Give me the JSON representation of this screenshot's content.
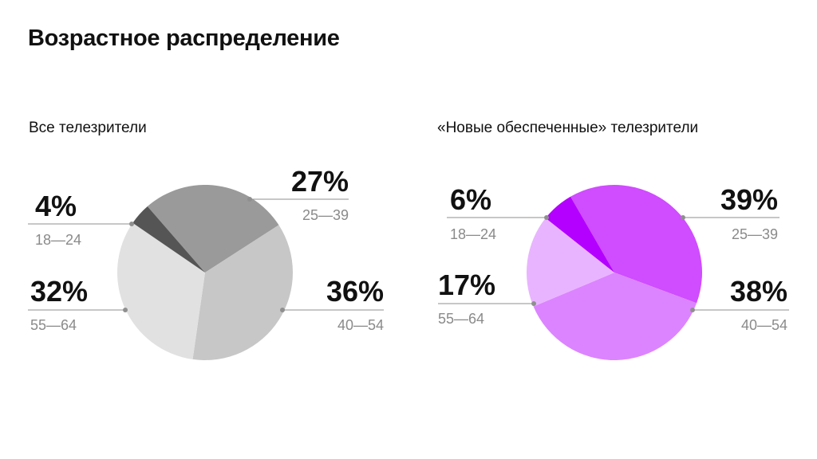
{
  "title": "Возрастное распределение",
  "chart_data": [
    {
      "type": "pie",
      "title": "Все телезрители",
      "slices": [
        {
          "label": "25—39",
          "value": 27,
          "value_label": "27%",
          "color": "#9a9a9a"
        },
        {
          "label": "40—54",
          "value": 36,
          "value_label": "36%",
          "color": "#c7c7c7"
        },
        {
          "label": "55—64",
          "value": 32,
          "value_label": "32%",
          "color": "#e1e1e1"
        },
        {
          "label": "18—24",
          "value": 4,
          "value_label": "4%",
          "color": "#555555"
        }
      ]
    },
    {
      "type": "pie",
      "title": "«Новые обеспеченные» телезрители",
      "slices": [
        {
          "label": "25—39",
          "value": 39,
          "value_label": "39%",
          "color": "#cf4cff"
        },
        {
          "label": "40—54",
          "value": 38,
          "value_label": "38%",
          "color": "#dc84ff"
        },
        {
          "label": "55—64",
          "value": 17,
          "value_label": "17%",
          "color": "#e9b4ff"
        },
        {
          "label": "18—24",
          "value": 6,
          "value_label": "6%",
          "color": "#b400ff"
        }
      ]
    }
  ]
}
